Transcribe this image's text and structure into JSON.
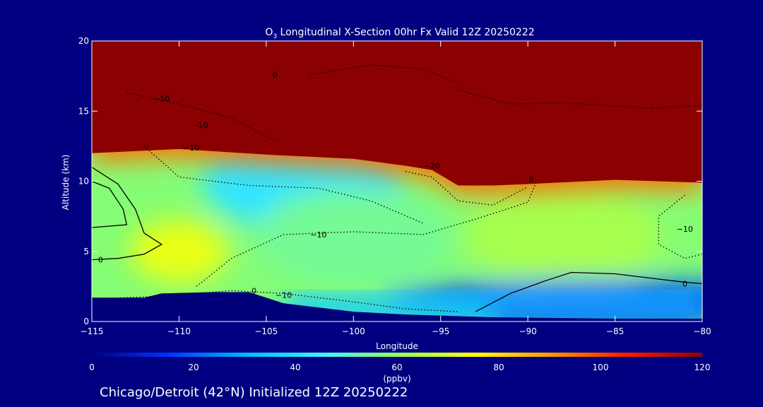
{
  "chart_data": {
    "type": "heatmap",
    "title_main": "O",
    "title_sub": "3",
    "title_rest": " Longitudinal X-Section 00hr  Fx Valid 12Z 20250222",
    "xlabel": "Longitude",
    "ylabel": "Altitude (km)",
    "xlim": [
      -115,
      -80
    ],
    "ylim": [
      0,
      20
    ],
    "x_ticks": [
      -115,
      -110,
      -105,
      -100,
      -95,
      -90,
      -85,
      -80
    ],
    "x_tick_labels": [
      "−115",
      "−110",
      "−105",
      "−100",
      "−95",
      "−90",
      "−85",
      "−80"
    ],
    "y_ticks": [
      0,
      5,
      10,
      15,
      20
    ],
    "y_tick_labels": [
      "0",
      "5",
      "10",
      "15",
      "20"
    ],
    "colorbar": {
      "range": [
        0,
        120
      ],
      "ticks": [
        0,
        20,
        40,
        60,
        80,
        100,
        120
      ],
      "tick_labels": [
        "0",
        "20",
        "40",
        "60",
        "80",
        "100",
        "120"
      ],
      "unit": "(ppbv)",
      "colors": [
        "#00007a",
        "#0033ff",
        "#00b8ff",
        "#40f0ff",
        "#90ff60",
        "#ffff00",
        "#ff9a00",
        "#ff1a00",
        "#8b0000"
      ]
    },
    "ozone_fields": {
      "tropopause_height_km": [
        [
          -115,
          12.0
        ],
        [
          -110,
          12.3
        ],
        [
          -105,
          11.9
        ],
        [
          -100,
          11.6
        ],
        [
          -97,
          11.1
        ],
        [
          -95.5,
          10.8
        ],
        [
          -94,
          9.7
        ],
        [
          -92,
          9.7
        ],
        [
          -90,
          9.8
        ],
        [
          -85,
          10.1
        ],
        [
          -80,
          9.9
        ]
      ],
      "stratosphere_ppbv": 120,
      "troposphere_ppbv_by_region": [
        {
          "lon": -110,
          "alt": 5,
          "ppbv": 72
        },
        {
          "lon": -103,
          "alt": 10,
          "ppbv": 42
        },
        {
          "lon": -100,
          "alt": 6,
          "ppbv": 55
        },
        {
          "lon": -88,
          "alt": 6,
          "ppbv": 63
        },
        {
          "lon": -85,
          "alt": 1.5,
          "ppbv": 20
        }
      ]
    },
    "terrain_height_km": [
      [
        -115,
        1.7
      ],
      [
        -112,
        1.7
      ],
      [
        -111,
        2.0
      ],
      [
        -108,
        2.1
      ],
      [
        -106,
        2.1
      ],
      [
        -104,
        1.3
      ],
      [
        -100,
        0.7
      ],
      [
        -97,
        0.5
      ],
      [
        -92,
        0.3
      ],
      [
        -85,
        0.2
      ],
      [
        -80,
        0.2
      ]
    ],
    "contours": [
      {
        "label": "0",
        "style": "solid",
        "label_lon": -114.5,
        "label_alt": 4.4
      },
      {
        "label": "0",
        "style": "solid",
        "label_lon": -81.0,
        "label_alt": 2.7
      },
      {
        "label": "0",
        "style": "dotted",
        "label_lon": -105.7,
        "label_alt": 2.2
      },
      {
        "label": "0",
        "style": "dotted",
        "label_lon": -104.5,
        "label_alt": 17.6
      },
      {
        "label": "0",
        "style": "dotted",
        "label_lon": -89.8,
        "label_alt": 10.1
      },
      {
        "label": "−10",
        "style": "dotted",
        "label_lon": -111.0,
        "label_alt": 15.9
      },
      {
        "label": "−10",
        "style": "dotted",
        "label_lon": -108.8,
        "label_alt": 14.0
      },
      {
        "label": "−10",
        "style": "dotted",
        "label_lon": -109.3,
        "label_alt": 12.4
      },
      {
        "label": "−10",
        "style": "dotted",
        "label_lon": -104.0,
        "label_alt": 1.9
      },
      {
        "label": "−10",
        "style": "dotted",
        "label_lon": -102.0,
        "label_alt": 6.2
      },
      {
        "label": "−10",
        "style": "dotted",
        "label_lon": -81.0,
        "label_alt": 6.6
      },
      {
        "label": "−20",
        "style": "dotted",
        "label_lon": -95.5,
        "label_alt": 11.1
      }
    ]
  },
  "caption": "Chicago/Detroit (42°N) Initialized 12Z 20250222"
}
